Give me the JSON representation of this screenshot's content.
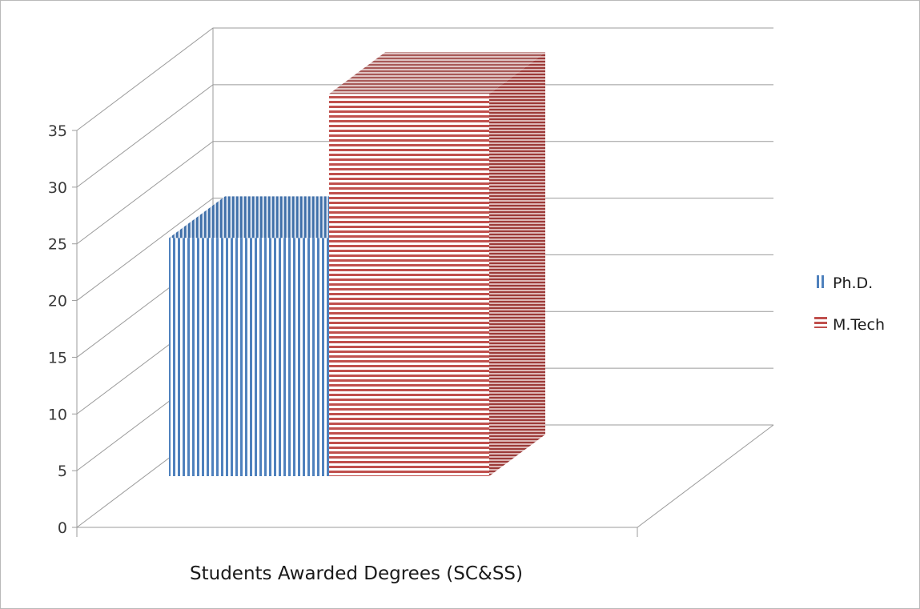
{
  "chart_data": {
    "type": "bar",
    "categories": [
      "Students Awarded Degrees (SC&SS)"
    ],
    "series": [
      {
        "name": "Ph.D.",
        "values": [
          21
        ],
        "color": "#4f81bd",
        "pattern": "vertical-stripes"
      },
      {
        "name": "M.Tech",
        "values": [
          33.7
        ],
        "color": "#c0504d",
        "pattern": "horizontal-stripes"
      }
    ],
    "title": "",
    "xlabel": "",
    "ylabel": "",
    "ylim": [
      0,
      35
    ],
    "yticks": [
      "0",
      "5",
      "10",
      "15",
      "20",
      "25",
      "30",
      "35"
    ],
    "grid": true,
    "legend_position": "right",
    "style": "3d"
  }
}
